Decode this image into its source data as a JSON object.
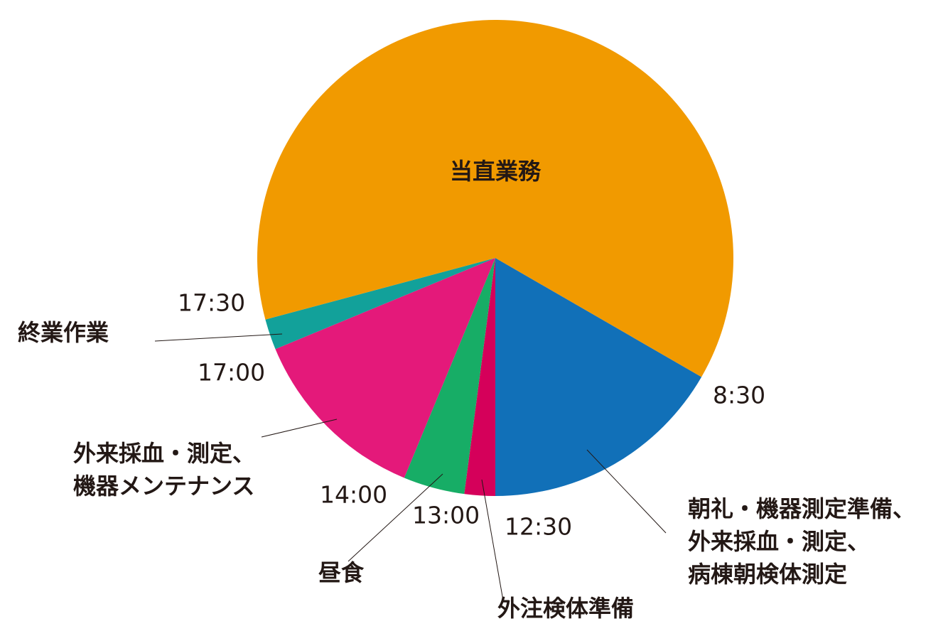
{
  "chart_data": {
    "type": "pie",
    "categories": [
      "朝礼・機器測定準備、\n外来採血・測定、\n病棟朝検体測定",
      "外注検体準備",
      "昼食",
      "外来採血・測定、\n機器メンテナンス",
      "終業作業",
      "当直業務"
    ],
    "values": [
      4,
      0.5,
      1,
      3,
      0.5,
      15
    ],
    "colors": [
      "#1170b8",
      "#d5005a",
      "#17ad66",
      "#e4197a",
      "#12a19a",
      "#f19a00"
    ],
    "times": [
      "8:30",
      "12:30",
      "13:00",
      "14:00",
      "17:00",
      "17:30"
    ]
  }
}
